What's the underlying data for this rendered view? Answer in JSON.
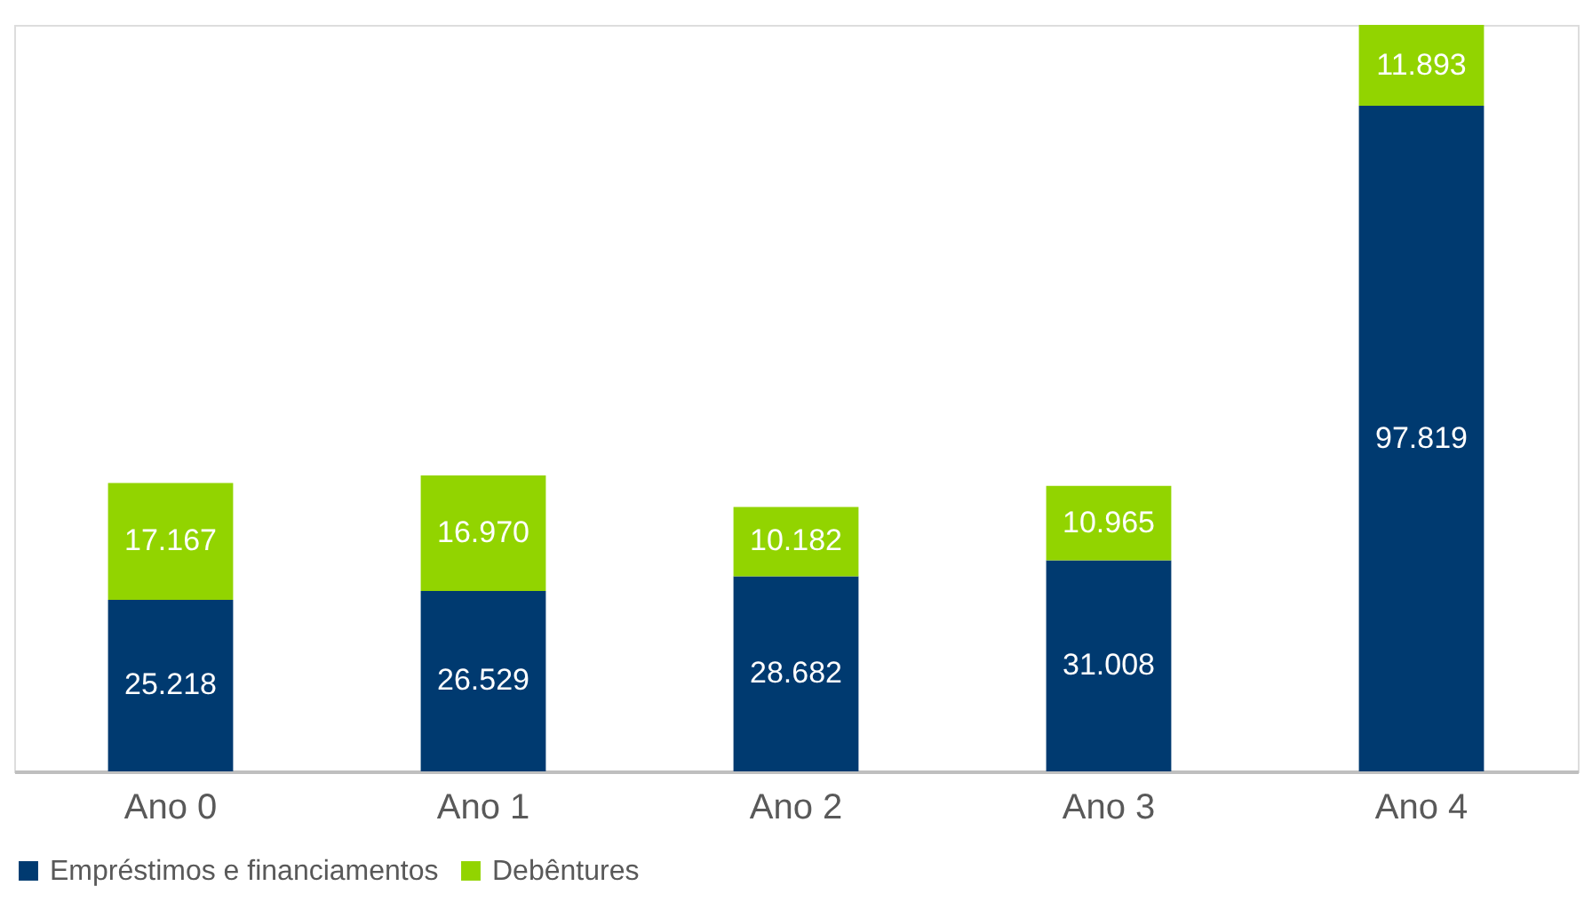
{
  "chart_data": {
    "type": "bar",
    "stacked": true,
    "data_labels": true,
    "legend": "bottom",
    "grid": false,
    "categories": [
      "Ano 0",
      "Ano 1",
      "Ano 2",
      "Ano 3",
      "Ano 4"
    ],
    "series": [
      {
        "name": "Empréstimos e financiamentos",
        "color": "#003a70",
        "values": [
          25.218,
          26.529,
          28.682,
          31.008,
          97.819
        ],
        "value_labels": [
          "25.218",
          "26.529",
          "28.682",
          "31.008",
          "97.819"
        ]
      },
      {
        "name": "Debêntures",
        "color": "#92d400",
        "values": [
          17.167,
          16.97,
          10.182,
          10.965,
          11.893
        ],
        "value_labels": [
          "17.167",
          "16.970",
          "10.182",
          "10.965",
          "11.893"
        ]
      }
    ]
  }
}
